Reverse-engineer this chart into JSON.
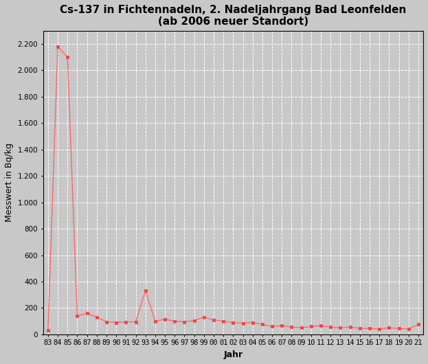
{
  "title": "Cs-137 in Fichtennadeln, 2. Nadeljahrgang Bad Leonfelden",
  "subtitle": "(ab 2006 neuer Standort)",
  "xlabel": "Jahr",
  "ylabel": "Messwert in Bq/kg",
  "background_color": "#c8c8c8",
  "line_color": "#ff6666",
  "marker_color": "#ee4444",
  "year_labels": [
    "83",
    "84",
    "85",
    "86",
    "87",
    "88",
    "89",
    "90",
    "91",
    "92",
    "93",
    "94",
    "95",
    "96",
    "97",
    "98",
    "99",
    "00",
    "01",
    "02",
    "03",
    "04",
    "05",
    "06",
    "07",
    "08",
    "09",
    "10",
    "11",
    "12",
    "13",
    "14",
    "15",
    "16",
    "17",
    "18",
    "19",
    "20",
    "21"
  ],
  "values": [
    30,
    2180,
    2100,
    140,
    160,
    130,
    95,
    90,
    95,
    95,
    330,
    100,
    115,
    100,
    95,
    105,
    130,
    110,
    100,
    90,
    85,
    90,
    75,
    60,
    65,
    55,
    50,
    60,
    65,
    55,
    50,
    55,
    45,
    45,
    40,
    50,
    45,
    40,
    75
  ],
  "ylim": [
    0,
    2300
  ],
  "yticks": [
    0,
    200,
    400,
    600,
    800,
    1000,
    1200,
    1400,
    1600,
    1800,
    2000,
    2200
  ],
  "title_fontsize": 11,
  "subtitle_fontsize": 9,
  "axis_label_fontsize": 9,
  "tick_fontsize": 7.5
}
